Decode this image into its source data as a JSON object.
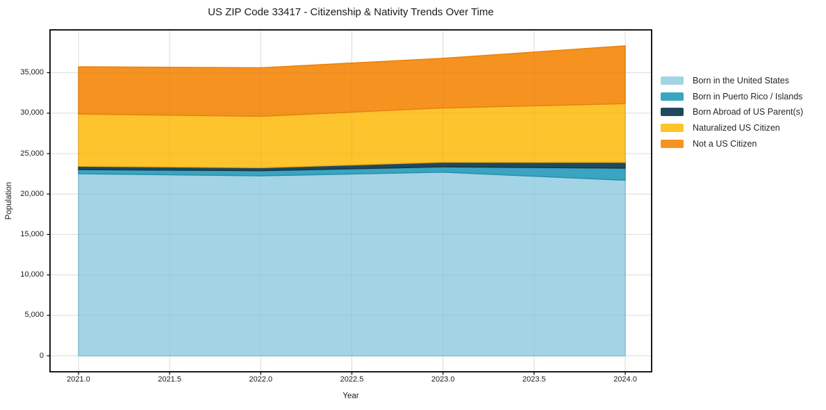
{
  "title": "US ZIP Code 33417 - Citizenship & Nativity Trends Over Time",
  "chart_data": {
    "type": "area",
    "stacked": true,
    "title": "US ZIP Code 33417 - Citizenship & Nativity Trends Over Time",
    "xlabel": "Year",
    "ylabel": "Population",
    "x": [
      2021,
      2022,
      2023,
      2024
    ],
    "series": [
      {
        "name": "Born in the United States",
        "color": "#a3d4e6",
        "edge": "#86c2da",
        "values": [
          22500,
          22250,
          22700,
          21700
        ]
      },
      {
        "name": "Born in Puerto Rico / Islands",
        "color": "#3aa5c1",
        "edge": "#2b8fa9",
        "values": [
          520,
          630,
          660,
          1500
        ]
      },
      {
        "name": "Born Abroad of US Parent(s)",
        "color": "#20495d",
        "edge": "#16374a",
        "values": [
          420,
          380,
          580,
          720
        ]
      },
      {
        "name": "Naturalized US Citizen",
        "color": "#fec42d",
        "edge": "#eeb01a",
        "values": [
          6450,
          6350,
          6700,
          7250
        ]
      },
      {
        "name": "Not a US Citizen",
        "color": "#f6921f",
        "edge": "#e6820f",
        "values": [
          5840,
          6000,
          6140,
          7150
        ]
      }
    ],
    "totals": [
      35730,
      35610,
      36780,
      38320
    ],
    "xticks": {
      "values": [
        2021,
        2021.5,
        2022,
        2022.5,
        2023,
        2023.5,
        2024
      ],
      "labels": [
        "2021.0",
        "2021.5",
        "2022.0",
        "2022.5",
        "2023.0",
        "2023.5",
        "2024.0"
      ]
    },
    "yticks": {
      "values": [
        0,
        5000,
        10000,
        15000,
        20000,
        25000,
        30000,
        35000
      ],
      "labels": [
        "0",
        "5,000",
        "10,000",
        "15,000",
        "20,000",
        "25,000",
        "30,000",
        "35,000"
      ]
    },
    "xlim": [
      2021,
      2024
    ],
    "ylim": [
      0,
      40000
    ],
    "grid": true,
    "legend_position": "right",
    "background_color": "#ffffff",
    "gridline_color": "#ebebeb",
    "border_color": "#000000",
    "text_color": "#1a1a1a"
  }
}
